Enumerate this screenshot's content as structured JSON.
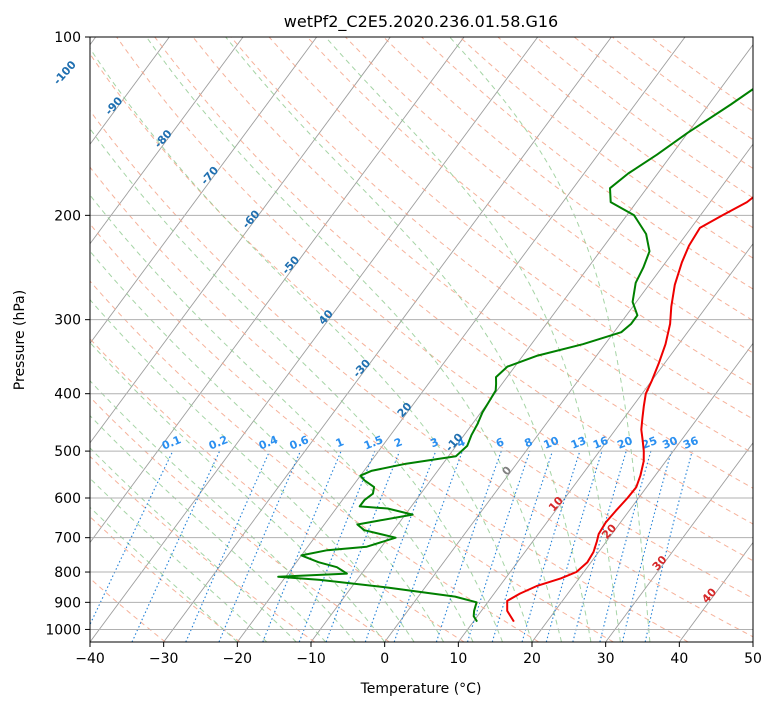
{
  "chart_data": {
    "type": "line",
    "subtype": "skew-T log-P diagram",
    "title": "wetPf2_C2E5.2020.236.01.58.G16",
    "xlabel": "Temperature (°C)",
    "ylabel": "Pressure (hPa)",
    "xlim": [
      -40,
      50
    ],
    "ylim": [
      1050,
      100
    ],
    "y_scale": "log",
    "x_ticks": [
      "−40",
      "−30",
      "−20",
      "−10",
      "0",
      "10",
      "20",
      "30",
      "40",
      "50"
    ],
    "x_tick_values": [
      -40,
      -30,
      -20,
      -10,
      0,
      10,
      20,
      30,
      40,
      50
    ],
    "y_ticks": [
      "100",
      "200",
      "300",
      "400",
      "500",
      "600",
      "700",
      "800",
      "900",
      "1000"
    ],
    "y_tick_values": [
      100,
      200,
      300,
      400,
      500,
      600,
      700,
      800,
      900,
      1000
    ],
    "grid": true,
    "series": [
      {
        "color": "#ee0000",
        "points": [
          [
            15.5,
            970
          ],
          [
            13.5,
            930
          ],
          [
            12.5,
            895
          ],
          [
            13.5,
            870
          ],
          [
            15,
            845
          ],
          [
            17.5,
            820
          ],
          [
            19,
            800
          ],
          [
            19.5,
            770
          ],
          [
            19.3,
            740
          ],
          [
            18.7,
            710
          ],
          [
            18.2,
            690
          ],
          [
            18,
            660
          ],
          [
            18.2,
            630
          ],
          [
            18.5,
            600
          ],
          [
            18.6,
            575
          ],
          [
            18,
            550
          ],
          [
            17,
            520
          ],
          [
            16,
            500
          ],
          [
            14.8,
            480
          ],
          [
            13.5,
            460
          ],
          [
            12.5,
            440
          ],
          [
            11.5,
            420
          ],
          [
            10.5,
            400
          ],
          [
            10,
            380
          ],
          [
            9.2,
            355
          ],
          [
            8.2,
            330
          ],
          [
            6.8,
            305
          ],
          [
            5.2,
            285
          ],
          [
            3.5,
            262
          ],
          [
            2.2,
            240
          ],
          [
            1.5,
            225
          ],
          [
            1.2,
            210
          ],
          [
            3,
            200
          ],
          [
            5,
            190
          ],
          [
            6.5,
            175
          ],
          [
            7.5,
            160
          ],
          [
            8.5,
            145
          ],
          [
            9.5,
            130
          ],
          [
            10.2,
            120
          ],
          [
            11.5,
            110
          ],
          [
            14.5,
            100
          ]
        ]
      },
      {
        "color": "#008000",
        "points": [
          [
            10.5,
            970
          ],
          [
            9.5,
            950
          ],
          [
            9,
            930
          ],
          [
            8.5,
            900
          ],
          [
            5,
            880
          ],
          [
            -5,
            850
          ],
          [
            -15,
            825
          ],
          [
            -21,
            815
          ],
          [
            -12,
            805
          ],
          [
            -14,
            785
          ],
          [
            -17,
            770
          ],
          [
            -20,
            750
          ],
          [
            -17,
            735
          ],
          [
            -12,
            725
          ],
          [
            -9,
            700
          ],
          [
            -14,
            680
          ],
          [
            -15.5,
            665
          ],
          [
            -13,
            655
          ],
          [
            -9,
            640
          ],
          [
            -13,
            625
          ],
          [
            -17,
            620
          ],
          [
            -17,
            605
          ],
          [
            -16.5,
            590
          ],
          [
            -17,
            575
          ],
          [
            -19,
            560
          ],
          [
            -20,
            550
          ],
          [
            -19,
            540
          ],
          [
            -15,
            525
          ],
          [
            -9,
            510
          ],
          [
            -8.5,
            490
          ],
          [
            -9,
            470
          ],
          [
            -9.3,
            450
          ],
          [
            -9.8,
            430
          ],
          [
            -10,
            410
          ],
          [
            -10.2,
            395
          ],
          [
            -10.8,
            385
          ],
          [
            -11.5,
            375
          ],
          [
            -11,
            360
          ],
          [
            -8,
            345
          ],
          [
            -3,
            330
          ],
          [
            1,
            315
          ],
          [
            1.5,
            305
          ],
          [
            1.5,
            295
          ],
          [
            -0.5,
            280
          ],
          [
            -2,
            260
          ],
          [
            -2.5,
            245
          ],
          [
            -3.3,
            230
          ],
          [
            -5.5,
            215
          ],
          [
            -9,
            200
          ],
          [
            -13.5,
            190
          ],
          [
            -15,
            180
          ],
          [
            -14,
            170
          ],
          [
            -12,
            158
          ],
          [
            -10,
            145
          ],
          [
            -7,
            130
          ],
          [
            -4,
            115
          ],
          [
            -1.5,
            105
          ],
          [
            0,
            100
          ]
        ]
      }
    ],
    "dry_adiabat_labels": [
      "-100",
      "-90",
      "-80",
      "-70",
      "-60",
      "-50",
      "40",
      "-30",
      "20",
      "-10",
      "0",
      "10",
      "20",
      "30",
      "40"
    ],
    "mixing_ratio_labels": [
      "0.1",
      "0.2",
      "0.4",
      "0.6",
      "1",
      "1.5",
      "2",
      "3",
      "4",
      "6",
      "8",
      "10",
      "13",
      "16",
      "20",
      "25",
      "30",
      "36"
    ],
    "colors": {
      "temperature_line": "#ee0000",
      "dewpoint_line": "#008000",
      "isotherm": "#9e9e9e",
      "dry_adiabat": "#f4a58a",
      "moist_adiabat": "#8fc98f",
      "mixing_ratio": "#1f7fd6",
      "adiabat_label_cold": "#1f6fb0",
      "adiabat_label_warm": "#d62728",
      "mixing_label": "#2a8ff0"
    }
  }
}
